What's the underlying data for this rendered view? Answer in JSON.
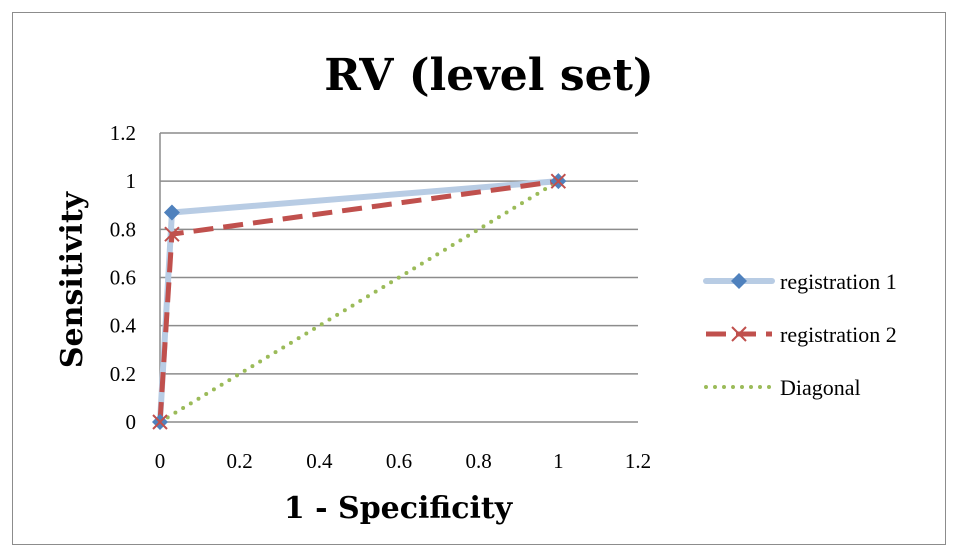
{
  "chart_data": {
    "type": "line",
    "title": "RV (level set)",
    "xlabel": "1 - Specificity",
    "ylabel": "Sensitivity",
    "xlim": [
      0,
      1.2
    ],
    "ylim": [
      0,
      1.2
    ],
    "x_ticks": [
      "0",
      "0.2",
      "0.4",
      "0.6",
      "0.8",
      "1",
      "1.2"
    ],
    "y_ticks": [
      "0",
      "0.2",
      "0.4",
      "0.6",
      "0.8",
      "1",
      "1.2"
    ],
    "grid": "horizontal",
    "legend_position": "right",
    "series": [
      {
        "name": "registration 1",
        "x": [
          0,
          0.03,
          1
        ],
        "y": [
          0,
          0.87,
          1
        ],
        "color": "#b8cce4",
        "marker": "diamond",
        "marker_color": "#4f81bd",
        "line_style": "solid"
      },
      {
        "name": "registration 2",
        "x": [
          0,
          0.03,
          1
        ],
        "y": [
          0,
          0.78,
          1
        ],
        "color": "#c0504d",
        "marker": "x",
        "marker_color": "#c0504d",
        "line_style": "dashed"
      },
      {
        "name": "Diagonal",
        "x": [
          0,
          1
        ],
        "y": [
          0,
          1
        ],
        "color": "#9bbb59",
        "marker": "none",
        "line_style": "dotted"
      }
    ]
  }
}
